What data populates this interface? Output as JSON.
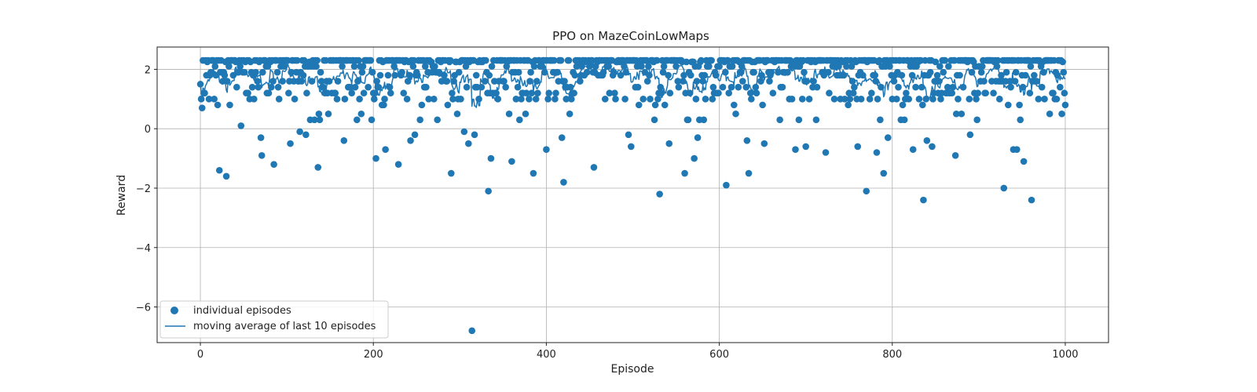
{
  "chart_data": {
    "type": "scatter",
    "title": "PPO on MazeCoinLowMaps",
    "xlabel": "Episode",
    "ylabel": "Reward",
    "xlim": [
      -50,
      1050
    ],
    "ylim": [
      -7.2,
      2.75
    ],
    "xticks": [
      0,
      200,
      400,
      600,
      800,
      1000
    ],
    "xtick_labels": [
      "0",
      "200",
      "400",
      "600",
      "800",
      "1000"
    ],
    "yticks": [
      -6,
      -4,
      -2,
      0,
      2
    ],
    "ytick_labels": [
      "−6",
      "−4",
      "−2",
      "0",
      "2"
    ],
    "grid": true,
    "legend_position": "lower-left",
    "colors": {
      "series": "#1f77b4",
      "grid": "#b0b0b0"
    },
    "series": [
      {
        "name": "individual episodes",
        "kind": "scatter",
        "values": []
      },
      {
        "name": "moving average of last 10 episodes",
        "kind": "line",
        "window": 10,
        "values": []
      }
    ],
    "notable_points": [
      {
        "x": 0,
        "y": 1.5
      },
      {
        "x": 2,
        "y": 0.7
      },
      {
        "x": 20,
        "y": 0.8
      },
      {
        "x": 22,
        "y": -1.4
      },
      {
        "x": 30,
        "y": -1.6
      },
      {
        "x": 47,
        "y": 0.1
      },
      {
        "x": 70,
        "y": -0.3
      },
      {
        "x": 71,
        "y": -0.9
      },
      {
        "x": 85,
        "y": -1.2
      },
      {
        "x": 104,
        "y": -0.5
      },
      {
        "x": 115,
        "y": -0.1
      },
      {
        "x": 122,
        "y": -0.2
      },
      {
        "x": 136,
        "y": -1.3
      },
      {
        "x": 166,
        "y": -0.4
      },
      {
        "x": 203,
        "y": -1.0
      },
      {
        "x": 214,
        "y": -0.7
      },
      {
        "x": 229,
        "y": -1.2
      },
      {
        "x": 243,
        "y": -0.4
      },
      {
        "x": 248,
        "y": -0.2
      },
      {
        "x": 290,
        "y": -1.5
      },
      {
        "x": 305,
        "y": -0.1
      },
      {
        "x": 310,
        "y": -0.5
      },
      {
        "x": 314,
        "y": -6.8
      },
      {
        "x": 317,
        "y": -0.2
      },
      {
        "x": 333,
        "y": -2.1
      },
      {
        "x": 336,
        "y": -1.0
      },
      {
        "x": 360,
        "y": -1.1
      },
      {
        "x": 385,
        "y": -1.5
      },
      {
        "x": 400,
        "y": -0.7
      },
      {
        "x": 418,
        "y": -0.3
      },
      {
        "x": 420,
        "y": -1.8
      },
      {
        "x": 455,
        "y": -1.3
      },
      {
        "x": 495,
        "y": -0.2
      },
      {
        "x": 498,
        "y": -0.6
      },
      {
        "x": 531,
        "y": -2.2
      },
      {
        "x": 542,
        "y": -0.5
      },
      {
        "x": 560,
        "y": -1.5
      },
      {
        "x": 571,
        "y": -1.0
      },
      {
        "x": 575,
        "y": -0.3
      },
      {
        "x": 608,
        "y": -1.9
      },
      {
        "x": 634,
        "y": -1.5
      },
      {
        "x": 632,
        "y": -0.4
      },
      {
        "x": 652,
        "y": -0.5
      },
      {
        "x": 688,
        "y": -0.7
      },
      {
        "x": 700,
        "y": -0.6
      },
      {
        "x": 723,
        "y": -0.8
      },
      {
        "x": 760,
        "y": -0.6
      },
      {
        "x": 770,
        "y": -2.1
      },
      {
        "x": 782,
        "y": -0.8
      },
      {
        "x": 790,
        "y": -1.5
      },
      {
        "x": 795,
        "y": -0.3
      },
      {
        "x": 824,
        "y": -0.7
      },
      {
        "x": 836,
        "y": -2.4
      },
      {
        "x": 840,
        "y": -0.4
      },
      {
        "x": 846,
        "y": -0.6
      },
      {
        "x": 873,
        "y": -0.9
      },
      {
        "x": 890,
        "y": -0.2
      },
      {
        "x": 929,
        "y": -2.0
      },
      {
        "x": 940,
        "y": -0.7
      },
      {
        "x": 944,
        "y": -0.7
      },
      {
        "x": 952,
        "y": -1.1
      },
      {
        "x": 961,
        "y": -2.4
      },
      {
        "x": 1000,
        "y": 0.2
      },
      {
        "x": 1000,
        "y": 0.8
      }
    ],
    "typical_high_values": [
      2.3,
      2.25,
      2.1,
      1.9,
      1.8,
      1.6,
      1.4,
      1.2,
      1.0,
      0.8,
      0.5,
      0.3
    ]
  }
}
